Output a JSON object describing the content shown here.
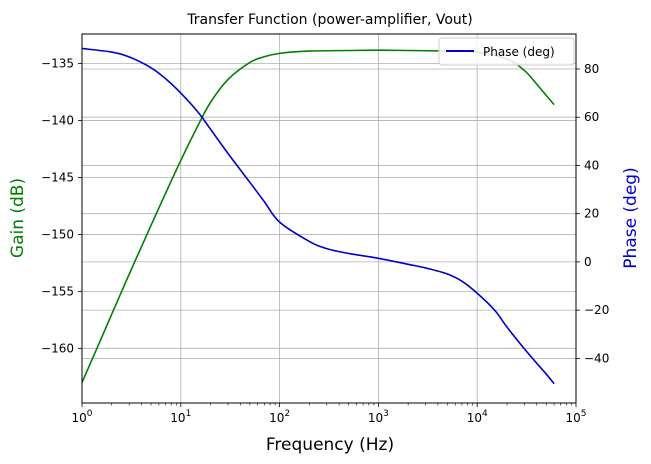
{
  "chart_data": {
    "type": "line",
    "title": "Transfer Function (power-amplifier, Vout)",
    "xlabel": "Frequency (Hz)",
    "ylabel_left": "Gain (dB)",
    "ylabel_right": "Phase (deg)",
    "xscale": "log",
    "xlim": [
      1,
      100000
    ],
    "ylim_left": [
      -164.8,
      -132.4
    ],
    "ylim_right": [
      -58.5,
      94.5
    ],
    "grid": true,
    "legend_position": "top-right",
    "x_ticks": [
      {
        "value": 1,
        "base": "10",
        "exp": "0"
      },
      {
        "value": 10,
        "base": "10",
        "exp": "1"
      },
      {
        "value": 100,
        "base": "10",
        "exp": "2"
      },
      {
        "value": 1000,
        "base": "10",
        "exp": "3"
      },
      {
        "value": 10000,
        "base": "10",
        "exp": "4"
      },
      {
        "value": 100000,
        "base": "10",
        "exp": "5"
      }
    ],
    "y_ticks_left": [
      {
        "value": -135,
        "label": "−135"
      },
      {
        "value": -140,
        "label": "−140"
      },
      {
        "value": -145,
        "label": "−145"
      },
      {
        "value": -150,
        "label": "−150"
      },
      {
        "value": -155,
        "label": "−155"
      },
      {
        "value": -160,
        "label": "−160"
      }
    ],
    "y_ticks_right": [
      {
        "value": 80,
        "label": "80"
      },
      {
        "value": 60,
        "label": "60"
      },
      {
        "value": 40,
        "label": "40"
      },
      {
        "value": 20,
        "label": "20"
      },
      {
        "value": 0,
        "label": "0"
      },
      {
        "value": -20,
        "label": "−20"
      },
      {
        "value": -40,
        "label": "−40"
      }
    ],
    "series": [
      {
        "id": "gain",
        "axis": "left",
        "color": "#008000",
        "points": [
          [
            1,
            -163.0
          ],
          [
            1.5,
            -159.5
          ],
          [
            2,
            -157.0
          ],
          [
            3,
            -153.5
          ],
          [
            5,
            -149.2
          ],
          [
            7,
            -146.4
          ],
          [
            10,
            -143.5
          ],
          [
            15,
            -140.4
          ],
          [
            20,
            -138.4
          ],
          [
            30,
            -136.4
          ],
          [
            50,
            -134.9
          ],
          [
            70,
            -134.4
          ],
          [
            100,
            -134.1
          ],
          [
            200,
            -133.9
          ],
          [
            500,
            -133.85
          ],
          [
            1000,
            -133.82
          ],
          [
            2000,
            -133.85
          ],
          [
            5000,
            -133.9
          ],
          [
            10000,
            -134.0
          ],
          [
            20000,
            -134.6
          ],
          [
            30000,
            -135.6
          ],
          [
            40000,
            -136.8
          ],
          [
            50000,
            -137.8
          ],
          [
            60000,
            -138.6
          ]
        ]
      },
      {
        "id": "phase",
        "axis": "right",
        "name": "Phase (deg)",
        "color": "#0000cc",
        "points": [
          [
            1,
            88.5
          ],
          [
            2,
            87
          ],
          [
            3,
            85
          ],
          [
            5,
            80.5
          ],
          [
            7,
            76
          ],
          [
            10,
            70
          ],
          [
            15,
            62
          ],
          [
            20,
            55
          ],
          [
            30,
            45
          ],
          [
            50,
            33
          ],
          [
            70,
            25
          ],
          [
            100,
            16.5
          ],
          [
            200,
            8.5
          ],
          [
            300,
            5.5
          ],
          [
            500,
            3.5
          ],
          [
            1000,
            1.5
          ],
          [
            2000,
            -1
          ],
          [
            3000,
            -2.5
          ],
          [
            5000,
            -5
          ],
          [
            7000,
            -8
          ],
          [
            10000,
            -13
          ],
          [
            15000,
            -20
          ],
          [
            20000,
            -27
          ],
          [
            30000,
            -36
          ],
          [
            40000,
            -42
          ],
          [
            50000,
            -46.5
          ],
          [
            60000,
            -50.5
          ]
        ]
      }
    ]
  }
}
